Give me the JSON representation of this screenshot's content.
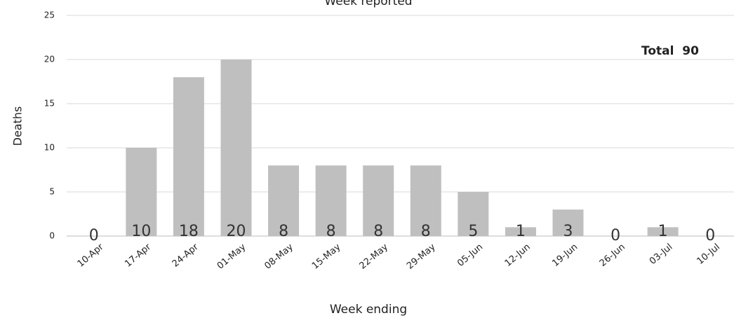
{
  "chart_data": {
    "type": "bar",
    "title": "Week reported",
    "x_label": "Week ending",
    "y_label": "Deaths",
    "annotation": "Total  90",
    "categories": [
      "10-Apr",
      "17-Apr",
      "24-Apr",
      "01-May",
      "08-May",
      "15-May",
      "22-May",
      "29-May",
      "05-Jun",
      "12-Jun",
      "19-Jun",
      "26-Jun",
      "03-Jul",
      "10-Jul"
    ],
    "values": [
      0,
      10,
      18,
      20,
      8,
      8,
      8,
      8,
      5,
      1,
      3,
      0,
      1,
      0
    ],
    "color": "#bfbfbf",
    "ylim": [
      0,
      25
    ],
    "yticks": [
      0,
      5,
      10,
      15,
      20,
      25
    ],
    "grid": true
  }
}
